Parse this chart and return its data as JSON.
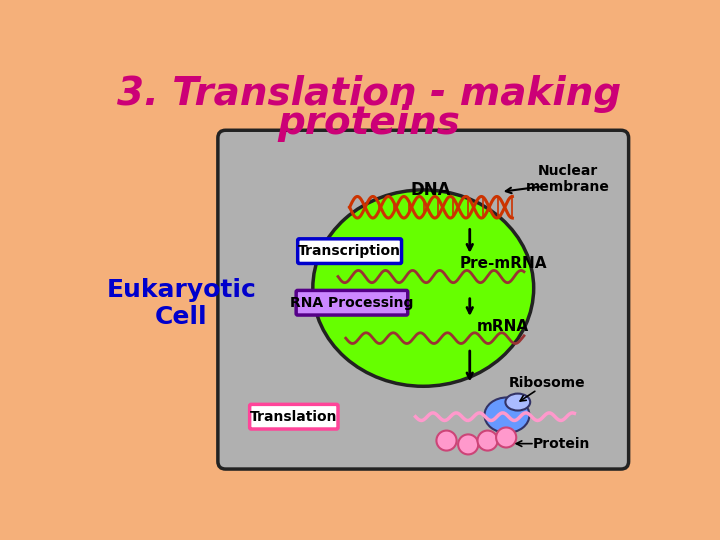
{
  "title_line1": "3. Translation - making",
  "title_line2": "proteins",
  "title_color": "#cc0077",
  "title_fontsize": 28,
  "bg_color": "#f5b07a",
  "cell_bg": "#b0b0b0",
  "nucleus_color": "#66ff00",
  "label_eukaryotic": "Eukaryotic\nCell",
  "label_eukaryotic_color": "#0000cc",
  "label_dna": "DNA",
  "label_transcription": "Transcription",
  "label_premrna": "Pre-mRNA",
  "label_rna_processing": "RNA Processing",
  "label_mrna": "mRNA",
  "label_ribosome": "Ribosome",
  "label_translation": "Translation",
  "label_protein": "Protein",
  "label_nuclear_membrane": "Nuclear\nmembrane",
  "arrow_color": "#000000",
  "dna_color": "#cc3300",
  "mrna_color": "#993333",
  "ribosome_color": "#6699ff",
  "ribosome_color2": "#aabbff",
  "protein_color": "#ff99cc",
  "transcription_border": "#0000cc",
  "rna_processing_bg": "#cc88ff",
  "rna_processing_border": "#550088",
  "translation_border": "#ff4499"
}
